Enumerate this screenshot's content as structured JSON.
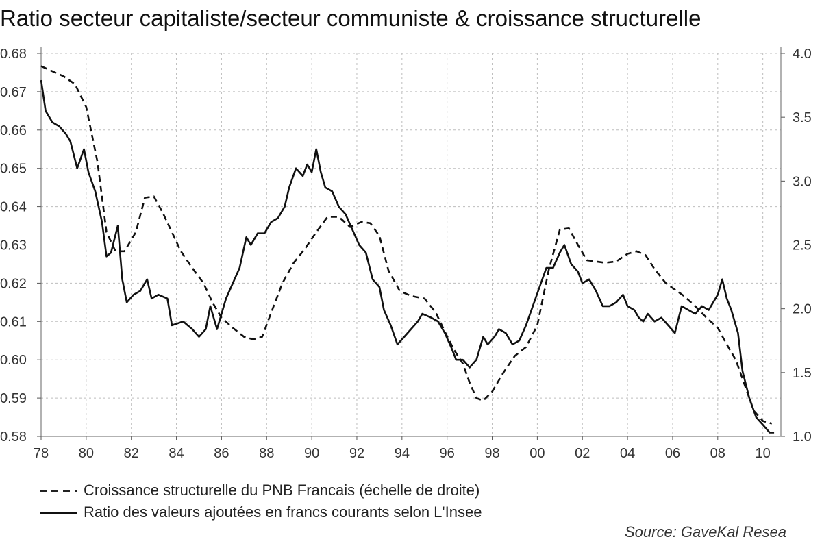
{
  "chart_data": {
    "type": "line",
    "title": "Ratio secteur capitaliste/secteur communiste & croissance structurelle",
    "source": "Source: GaveKal Resea",
    "x_ticks": [
      "78",
      "80",
      "82",
      "84",
      "86",
      "88",
      "90",
      "92",
      "94",
      "96",
      "98",
      "00",
      "02",
      "04",
      "06",
      "08",
      "10"
    ],
    "xlim": [
      1978,
      2010.8
    ],
    "y_left": {
      "ylim": [
        0.58,
        0.68
      ],
      "ticks": [
        "0.68",
        "0.67",
        "0.66",
        "0.65",
        "0.64",
        "0.63",
        "0.62",
        "0.61",
        "0.60",
        "0.59",
        "0.58"
      ]
    },
    "y_right": {
      "ylim": [
        1.0,
        4.0
      ],
      "ticks": [
        "4.0",
        "3.5",
        "3.0",
        "2.5",
        "2.0",
        "1.5",
        "1.0"
      ]
    },
    "grid": true,
    "series": [
      {
        "name": "Croissance structurelle du PNB Francais (échelle de droite)",
        "axis": "right",
        "style": "dashed",
        "points": [
          [
            1978.0,
            3.9
          ],
          [
            1978.5,
            3.86
          ],
          [
            1979.0,
            3.82
          ],
          [
            1979.5,
            3.76
          ],
          [
            1980.0,
            3.58
          ],
          [
            1980.5,
            3.15
          ],
          [
            1980.9,
            2.6
          ],
          [
            1981.3,
            2.45
          ],
          [
            1981.7,
            2.45
          ],
          [
            1982.2,
            2.6
          ],
          [
            1982.6,
            2.87
          ],
          [
            1983.0,
            2.88
          ],
          [
            1983.4,
            2.75
          ],
          [
            1983.8,
            2.6
          ],
          [
            1984.2,
            2.45
          ],
          [
            1984.7,
            2.32
          ],
          [
            1985.2,
            2.2
          ],
          [
            1985.6,
            2.05
          ],
          [
            1986.0,
            1.93
          ],
          [
            1986.5,
            1.85
          ],
          [
            1987.0,
            1.78
          ],
          [
            1987.4,
            1.76
          ],
          [
            1987.8,
            1.78
          ],
          [
            1988.2,
            1.97
          ],
          [
            1988.7,
            2.2
          ],
          [
            1989.2,
            2.36
          ],
          [
            1989.7,
            2.47
          ],
          [
            1990.2,
            2.6
          ],
          [
            1990.7,
            2.72
          ],
          [
            1991.2,
            2.72
          ],
          [
            1991.7,
            2.64
          ],
          [
            1992.2,
            2.68
          ],
          [
            1992.6,
            2.67
          ],
          [
            1993.0,
            2.57
          ],
          [
            1993.4,
            2.3
          ],
          [
            1993.9,
            2.14
          ],
          [
            1994.4,
            2.1
          ],
          [
            1995.0,
            2.08
          ],
          [
            1995.5,
            1.97
          ],
          [
            1995.9,
            1.82
          ],
          [
            1996.3,
            1.68
          ],
          [
            1996.7,
            1.57
          ],
          [
            1997.0,
            1.42
          ],
          [
            1997.3,
            1.3
          ],
          [
            1997.6,
            1.28
          ],
          [
            1998.0,
            1.35
          ],
          [
            1998.5,
            1.5
          ],
          [
            1999.0,
            1.63
          ],
          [
            1999.5,
            1.7
          ],
          [
            2000.0,
            1.87
          ],
          [
            2000.5,
            2.3
          ],
          [
            2001.0,
            2.62
          ],
          [
            2001.4,
            2.63
          ],
          [
            2001.8,
            2.5
          ],
          [
            2002.2,
            2.38
          ],
          [
            2002.6,
            2.37
          ],
          [
            2003.0,
            2.36
          ],
          [
            2003.5,
            2.37
          ],
          [
            2004.0,
            2.43
          ],
          [
            2004.4,
            2.45
          ],
          [
            2004.8,
            2.42
          ],
          [
            2005.2,
            2.31
          ],
          [
            2005.7,
            2.2
          ],
          [
            2006.1,
            2.15
          ],
          [
            2006.5,
            2.1
          ],
          [
            2007.0,
            2.02
          ],
          [
            2007.5,
            1.93
          ],
          [
            2008.0,
            1.85
          ],
          [
            2008.4,
            1.72
          ],
          [
            2008.8,
            1.6
          ],
          [
            2009.2,
            1.4
          ],
          [
            2009.6,
            1.2
          ],
          [
            2010.0,
            1.12
          ],
          [
            2010.4,
            1.1
          ]
        ]
      },
      {
        "name": "Ratio des valeurs ajoutées en francs courants selon L'Insee",
        "axis": "left",
        "style": "solid",
        "points": [
          [
            1978.0,
            0.673
          ],
          [
            1978.2,
            0.665
          ],
          [
            1978.5,
            0.662
          ],
          [
            1978.8,
            0.661
          ],
          [
            1979.1,
            0.659
          ],
          [
            1979.3,
            0.657
          ],
          [
            1979.6,
            0.65
          ],
          [
            1979.9,
            0.655
          ],
          [
            1980.1,
            0.649
          ],
          [
            1980.4,
            0.644
          ],
          [
            1980.7,
            0.636
          ],
          [
            1980.9,
            0.627
          ],
          [
            1981.1,
            0.628
          ],
          [
            1981.4,
            0.635
          ],
          [
            1981.6,
            0.621
          ],
          [
            1981.8,
            0.615
          ],
          [
            1982.1,
            0.617
          ],
          [
            1982.4,
            0.618
          ],
          [
            1982.7,
            0.621
          ],
          [
            1982.9,
            0.616
          ],
          [
            1983.2,
            0.617
          ],
          [
            1983.6,
            0.616
          ],
          [
            1983.8,
            0.609
          ],
          [
            1984.3,
            0.61
          ],
          [
            1984.7,
            0.608
          ],
          [
            1985.0,
            0.606
          ],
          [
            1985.3,
            0.608
          ],
          [
            1985.5,
            0.614
          ],
          [
            1985.8,
            0.608
          ],
          [
            1986.2,
            0.616
          ],
          [
            1986.5,
            0.62
          ],
          [
            1986.8,
            0.624
          ],
          [
            1987.1,
            0.632
          ],
          [
            1987.3,
            0.63
          ],
          [
            1987.6,
            0.633
          ],
          [
            1987.9,
            0.633
          ],
          [
            1988.2,
            0.636
          ],
          [
            1988.5,
            0.637
          ],
          [
            1988.8,
            0.64
          ],
          [
            1989.0,
            0.645
          ],
          [
            1989.3,
            0.65
          ],
          [
            1989.6,
            0.648
          ],
          [
            1989.8,
            0.651
          ],
          [
            1990.0,
            0.649
          ],
          [
            1990.2,
            0.655
          ],
          [
            1990.4,
            0.649
          ],
          [
            1990.6,
            0.645
          ],
          [
            1990.9,
            0.644
          ],
          [
            1991.2,
            0.64
          ],
          [
            1991.5,
            0.638
          ],
          [
            1991.8,
            0.634
          ],
          [
            1992.1,
            0.63
          ],
          [
            1992.4,
            0.628
          ],
          [
            1992.7,
            0.621
          ],
          [
            1993.0,
            0.619
          ],
          [
            1993.2,
            0.613
          ],
          [
            1993.5,
            0.609
          ],
          [
            1993.8,
            0.604
          ],
          [
            1994.1,
            0.606
          ],
          [
            1994.4,
            0.608
          ],
          [
            1994.7,
            0.61
          ],
          [
            1994.9,
            0.612
          ],
          [
            1995.3,
            0.611
          ],
          [
            1995.6,
            0.61
          ],
          [
            1995.9,
            0.607
          ],
          [
            1996.2,
            0.603
          ],
          [
            1996.4,
            0.6
          ],
          [
            1996.7,
            0.6
          ],
          [
            1997.0,
            0.598
          ],
          [
            1997.3,
            0.6
          ],
          [
            1997.6,
            0.606
          ],
          [
            1997.8,
            0.604
          ],
          [
            1998.1,
            0.606
          ],
          [
            1998.3,
            0.608
          ],
          [
            1998.6,
            0.607
          ],
          [
            1998.9,
            0.604
          ],
          [
            1999.2,
            0.605
          ],
          [
            1999.5,
            0.609
          ],
          [
            1999.8,
            0.614
          ],
          [
            2000.1,
            0.619
          ],
          [
            2000.4,
            0.624
          ],
          [
            2000.7,
            0.624
          ],
          [
            2001.0,
            0.628
          ],
          [
            2001.2,
            0.63
          ],
          [
            2001.5,
            0.625
          ],
          [
            2001.8,
            0.623
          ],
          [
            2002.0,
            0.62
          ],
          [
            2002.3,
            0.621
          ],
          [
            2002.6,
            0.618
          ],
          [
            2002.9,
            0.614
          ],
          [
            2003.2,
            0.614
          ],
          [
            2003.5,
            0.615
          ],
          [
            2003.8,
            0.617
          ],
          [
            2004.0,
            0.614
          ],
          [
            2004.3,
            0.613
          ],
          [
            2004.5,
            0.611
          ],
          [
            2004.7,
            0.61
          ],
          [
            2004.9,
            0.612
          ],
          [
            2005.2,
            0.61
          ],
          [
            2005.5,
            0.611
          ],
          [
            2005.8,
            0.609
          ],
          [
            2006.1,
            0.607
          ],
          [
            2006.4,
            0.614
          ],
          [
            2006.7,
            0.613
          ],
          [
            2007.0,
            0.612
          ],
          [
            2007.3,
            0.614
          ],
          [
            2007.6,
            0.613
          ],
          [
            2008.0,
            0.617
          ],
          [
            2008.2,
            0.621
          ],
          [
            2008.4,
            0.616
          ],
          [
            2008.6,
            0.613
          ],
          [
            2008.9,
            0.607
          ],
          [
            2009.1,
            0.597
          ],
          [
            2009.4,
            0.59
          ],
          [
            2009.7,
            0.585
          ],
          [
            2010.0,
            0.583
          ],
          [
            2010.3,
            0.581
          ],
          [
            2010.5,
            0.581
          ]
        ]
      }
    ]
  }
}
